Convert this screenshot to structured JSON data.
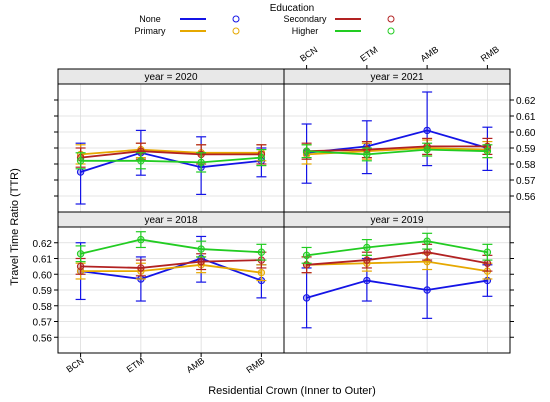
{
  "chart_data": {
    "type": "line",
    "layout": "2x2 facet grid",
    "x_categories": [
      "BCN",
      "ETM",
      "AMB",
      "RMB"
    ],
    "xlabel": "Residential Crown (Inner to Outer)",
    "ylabel": "Travel Time Ratio (TTR)",
    "ylim": [
      0.55,
      0.63
    ],
    "y_ticks": [
      "0.56",
      "0.57",
      "0.58",
      "0.59",
      "0.60",
      "0.61",
      "0.62"
    ],
    "grid": true,
    "legend": {
      "title": "Education",
      "placement": "top-center",
      "entries": [
        {
          "label": "None",
          "color": "#1414e6"
        },
        {
          "label": "Secondary",
          "color": "#b22222"
        },
        {
          "label": "Primary",
          "color": "#e6a800"
        },
        {
          "label": "Higher",
          "color": "#22cc22"
        }
      ]
    },
    "panels": [
      {
        "title": "year = 2020",
        "series": [
          {
            "name": "None",
            "color": "#1414e6",
            "values": [
              0.575,
              0.587,
              0.578,
              0.582
            ],
            "lower": [
              0.555,
              0.573,
              0.561,
              0.572
            ],
            "upper": [
              0.593,
              0.601,
              0.597,
              0.59
            ]
          },
          {
            "name": "Primary",
            "color": "#e6a800",
            "values": [
              0.586,
              0.589,
              0.587,
              0.587
            ],
            "lower": [
              0.58,
              0.584,
              0.581,
              0.582
            ],
            "upper": [
              0.592,
              0.593,
              0.592,
              0.592
            ]
          },
          {
            "name": "Secondary",
            "color": "#b22222",
            "values": [
              0.584,
              0.588,
              0.586,
              0.586
            ],
            "lower": [
              0.578,
              0.583,
              0.58,
              0.58
            ],
            "upper": [
              0.59,
              0.593,
              0.592,
              0.592
            ]
          },
          {
            "name": "Higher",
            "color": "#22cc22",
            "values": [
              0.582,
              0.582,
              0.581,
              0.584
            ],
            "lower": [
              0.577,
              0.577,
              0.575,
              0.579
            ],
            "upper": [
              0.587,
              0.587,
              0.587,
              0.589
            ]
          }
        ]
      },
      {
        "title": "year = 2021",
        "series": [
          {
            "name": "None",
            "color": "#1414e6",
            "values": [
              0.587,
              0.591,
              0.601,
              0.59
            ],
            "lower": [
              0.568,
              0.574,
              0.579,
              0.576
            ],
            "upper": [
              0.605,
              0.607,
              0.625,
              0.603
            ]
          },
          {
            "name": "Primary",
            "color": "#e6a800",
            "values": [
              0.586,
              0.588,
              0.59,
              0.589
            ],
            "lower": [
              0.58,
              0.583,
              0.585,
              0.584
            ],
            "upper": [
              0.592,
              0.593,
              0.595,
              0.594
            ]
          },
          {
            "name": "Secondary",
            "color": "#b22222",
            "values": [
              0.588,
              0.589,
              0.591,
              0.591
            ],
            "lower": [
              0.583,
              0.584,
              0.586,
              0.586
            ],
            "upper": [
              0.593,
              0.594,
              0.596,
              0.596
            ]
          },
          {
            "name": "Higher",
            "color": "#22cc22",
            "values": [
              0.588,
              0.586,
              0.589,
              0.588
            ],
            "lower": [
              0.584,
              0.582,
              0.585,
              0.584
            ],
            "upper": [
              0.592,
              0.59,
              0.593,
              0.592
            ]
          }
        ]
      },
      {
        "title": "year = 2018",
        "series": [
          {
            "name": "None",
            "color": "#1414e6",
            "values": [
              0.602,
              0.597,
              0.61,
              0.596
            ],
            "lower": [
              0.584,
              0.583,
              0.595,
              0.585
            ],
            "upper": [
              0.62,
              0.611,
              0.624,
              0.606
            ]
          },
          {
            "name": "Primary",
            "color": "#e6a800",
            "values": [
              0.602,
              0.602,
              0.606,
              0.601
            ],
            "lower": [
              0.597,
              0.597,
              0.601,
              0.596
            ],
            "upper": [
              0.607,
              0.607,
              0.611,
              0.606
            ]
          },
          {
            "name": "Secondary",
            "color": "#b22222",
            "values": [
              0.605,
              0.604,
              0.608,
              0.609
            ],
            "lower": [
              0.6,
              0.599,
              0.603,
              0.604
            ],
            "upper": [
              0.61,
              0.609,
              0.613,
              0.614
            ]
          },
          {
            "name": "Higher",
            "color": "#22cc22",
            "values": [
              0.613,
              0.622,
              0.616,
              0.614
            ],
            "lower": [
              0.608,
              0.617,
              0.611,
              0.609
            ],
            "upper": [
              0.618,
              0.627,
              0.621,
              0.619
            ]
          }
        ]
      },
      {
        "title": "year = 2019",
        "series": [
          {
            "name": "None",
            "color": "#1414e6",
            "values": [
              0.585,
              0.596,
              0.59,
              0.596
            ],
            "lower": [
              0.566,
              0.583,
              0.572,
              0.586
            ],
            "upper": [
              0.604,
              0.61,
              0.608,
              0.606
            ]
          },
          {
            "name": "Primary",
            "color": "#e6a800",
            "values": [
              0.606,
              0.607,
              0.608,
              0.602
            ],
            "lower": [
              0.601,
              0.602,
              0.603,
              0.597
            ],
            "upper": [
              0.611,
              0.612,
              0.613,
              0.607
            ]
          },
          {
            "name": "Secondary",
            "color": "#b22222",
            "values": [
              0.606,
              0.609,
              0.614,
              0.607
            ],
            "lower": [
              0.601,
              0.604,
              0.609,
              0.602
            ],
            "upper": [
              0.611,
              0.614,
              0.619,
              0.612
            ]
          },
          {
            "name": "Higher",
            "color": "#22cc22",
            "values": [
              0.612,
              0.617,
              0.621,
              0.614
            ],
            "lower": [
              0.607,
              0.612,
              0.616,
              0.609
            ],
            "upper": [
              0.617,
              0.622,
              0.626,
              0.619
            ]
          }
        ]
      }
    ]
  }
}
